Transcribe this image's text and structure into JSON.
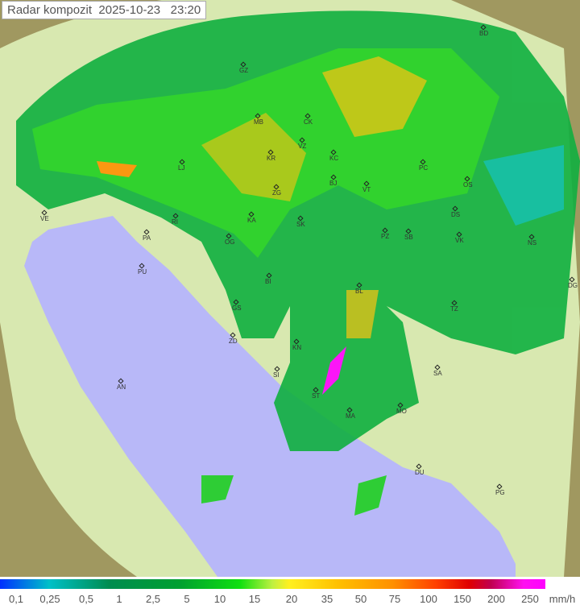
{
  "title": {
    "name": "Radar kompozit",
    "date": "2025-10-23",
    "time": "23:20"
  },
  "legend": {
    "unit": "mm/h",
    "ticks": [
      "0,1",
      "0,25",
      "0,5",
      "1",
      "2,5",
      "5",
      "10",
      "15",
      "20",
      "35",
      "50",
      "75",
      "100",
      "150",
      "200",
      "250"
    ],
    "colors": [
      "#0030ff",
      "#00c0c8",
      "#008c50",
      "#00a030",
      "#10e010",
      "#fff020",
      "#ffc000",
      "#ff9000",
      "#ff4000",
      "#e00000",
      "#c00050",
      "#ff00ff"
    ]
  },
  "map": {
    "sea_color": "#b8b8f8",
    "land_color": "#d8e8b0",
    "outside_color": "#a09860"
  },
  "cities": [
    "GZ",
    "BD",
    "MB",
    "CK",
    "VZ",
    "KR",
    "KC",
    "LJ",
    "ZG",
    "BJ",
    "VT",
    "PC",
    "OS",
    "VE",
    "RI",
    "KA",
    "SK",
    "DS",
    "VK",
    "NS",
    "PA",
    "OG",
    "PZ",
    "SB",
    "PU",
    "BI",
    "BL",
    "DG",
    "GS",
    "TZ",
    "ZD",
    "KN",
    "SA",
    "AN",
    "SI",
    "ST",
    "MO",
    "MA",
    "DU",
    "PG"
  ]
}
